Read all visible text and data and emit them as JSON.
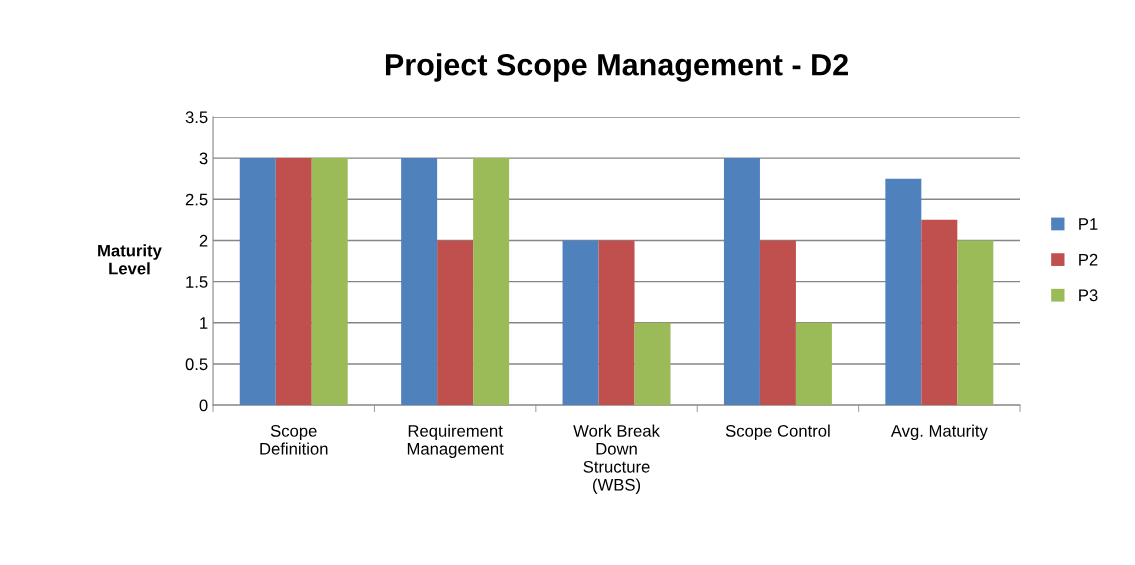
{
  "chart_data": {
    "type": "bar",
    "title": "Project Scope Management - D2",
    "ylabel": "Maturity\nLevel",
    "categories": [
      "Scope\nDefinition",
      "Requirement\nManagement",
      "Work Break\nDown\nStructure\n(WBS)",
      "Scope Control",
      "Avg. Maturity"
    ],
    "series": [
      {
        "name": "P1",
        "color": "#4f81bd",
        "values": [
          3,
          3,
          2,
          3,
          2.75
        ]
      },
      {
        "name": "P2",
        "color": "#c0504d",
        "values": [
          3,
          2,
          2,
          2,
          2.25
        ]
      },
      {
        "name": "P3",
        "color": "#9bbb59",
        "values": [
          3,
          3,
          1,
          1,
          2
        ]
      }
    ],
    "ylim": [
      0,
      3.5
    ],
    "yticks": [
      0,
      0.5,
      1,
      1.5,
      2,
      2.5,
      3,
      3.5
    ],
    "grid": "y",
    "legend": "right"
  }
}
